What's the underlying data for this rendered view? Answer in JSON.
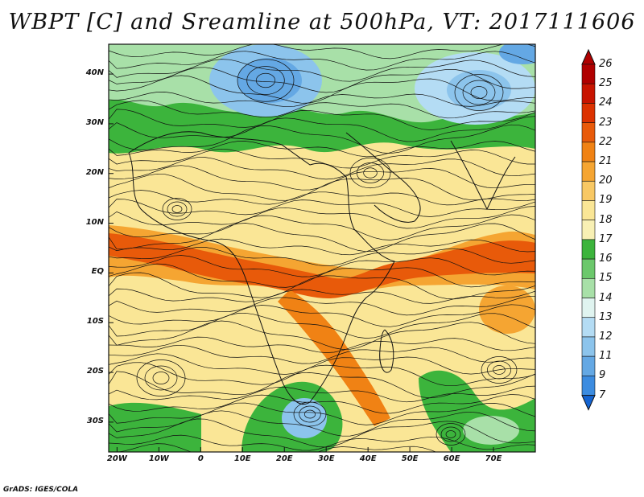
{
  "title": "WBPT [C] and Sreamline at 500hPa, VT: 2017111606",
  "y_ticks": [
    "40N",
    "30N",
    "20N",
    "10N",
    "EQ",
    "10S",
    "20S",
    "30S"
  ],
  "x_ticks": [
    "20W",
    "10W",
    "0",
    "10E",
    "20E",
    "30E",
    "40E",
    "50E",
    "60E",
    "70E"
  ],
  "colorbar": {
    "labels": [
      "26",
      "25",
      "24",
      "23",
      "22",
      "21",
      "20",
      "19",
      "18",
      "17",
      "16",
      "15",
      "14",
      "13",
      "12",
      "11",
      "9",
      "7"
    ],
    "colors": [
      "#b00000",
      "#c81400",
      "#dc3200",
      "#e85a0a",
      "#f08214",
      "#f5a532",
      "#f8c864",
      "#fae696",
      "#f8f0b4",
      "#3cb43c",
      "#6cc86c",
      "#a8e0a8",
      "#e0f4f0",
      "#b4dcf4",
      "#8cc4ec",
      "#64a8e4",
      "#3c8ce0",
      "#1464d2"
    ]
  },
  "map": {
    "domain": {
      "lon": [
        -22,
        80
      ],
      "lat": [
        -36,
        46
      ]
    },
    "colors": {
      "ocean_warm": "#f08214",
      "equator_band": "#e85a0a",
      "mid": "#fae696",
      "green": "#3cb43c",
      "blue": "#64a8e4"
    }
  },
  "credit": "GrADS: IGES/COLA"
}
